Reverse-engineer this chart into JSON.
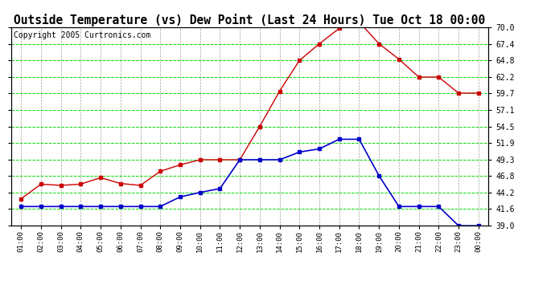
{
  "title": "Outside Temperature (vs) Dew Point (Last 24 Hours) Tue Oct 18 00:00",
  "copyright": "Copyright 2005 Curtronics.com",
  "x_labels": [
    "01:00",
    "02:00",
    "03:00",
    "04:00",
    "05:00",
    "06:00",
    "07:00",
    "08:00",
    "09:00",
    "10:00",
    "11:00",
    "12:00",
    "13:00",
    "14:00",
    "15:00",
    "16:00",
    "17:00",
    "18:00",
    "19:00",
    "20:00",
    "21:00",
    "22:00",
    "23:00",
    "00:00"
  ],
  "temp_red": [
    43.2,
    45.5,
    45.3,
    45.5,
    46.5,
    45.6,
    45.3,
    47.5,
    48.5,
    49.3,
    49.3,
    49.3,
    54.5,
    60.0,
    64.8,
    67.4,
    69.8,
    70.8,
    67.4,
    65.0,
    62.2,
    62.2,
    59.7,
    59.7
  ],
  "dew_blue": [
    42.0,
    42.0,
    42.0,
    42.0,
    42.0,
    42.0,
    42.0,
    42.0,
    43.5,
    44.2,
    44.8,
    49.3,
    49.3,
    49.3,
    50.5,
    51.0,
    52.5,
    52.5,
    46.8,
    42.0,
    42.0,
    42.0,
    39.0,
    39.0
  ],
  "ylim_min": 39.0,
  "ylim_max": 70.0,
  "yticks": [
    39.0,
    41.6,
    44.2,
    46.8,
    49.3,
    51.9,
    54.5,
    57.1,
    59.7,
    62.2,
    64.8,
    67.4,
    70.0
  ],
  "bg_color": "#ffffff",
  "plot_bg_color": "#ffffff",
  "grid_green": "#00dd00",
  "grid_gray": "#888888",
  "red_line_color": "#cc0000",
  "blue_line_color": "#0000cc",
  "title_fontsize": 10.5,
  "copyright_fontsize": 7
}
